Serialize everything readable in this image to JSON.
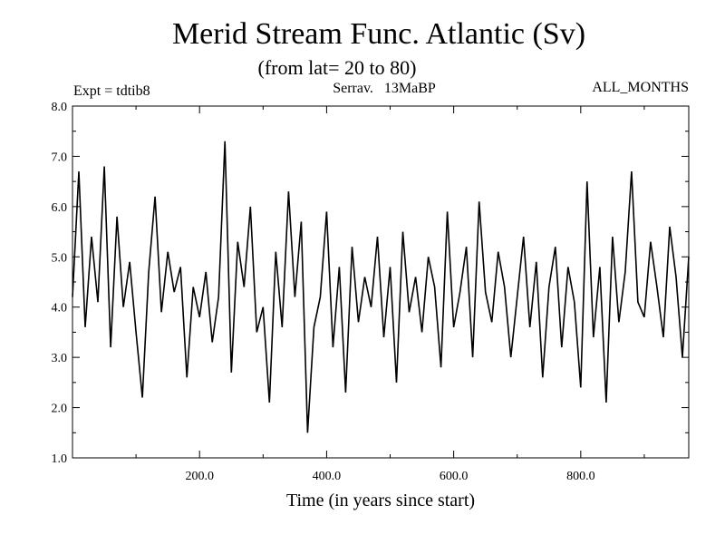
{
  "chart_data": {
    "type": "line",
    "title": "Merid Stream Func. Atlantic (Sv)",
    "subtitle": "(from lat= 20 to 80)",
    "annotations": {
      "left": "Expt = tdtib8",
      "center": "Serrav.   13MaBP",
      "right": "ALL_MONTHS"
    },
    "xlabel": "Time (in years since start)",
    "ylabel": "",
    "xlim": [
      0,
      970
    ],
    "ylim": [
      1.0,
      8.0
    ],
    "xticks": [
      200,
      400,
      600,
      800
    ],
    "xtick_labels": [
      "200.0",
      "400.0",
      "600.0",
      "800.0"
    ],
    "yticks": [
      1.0,
      2.0,
      3.0,
      4.0,
      5.0,
      6.0,
      7.0,
      8.0
    ],
    "ytick_labels": [
      "1.0",
      "2.0",
      "3.0",
      "4.0",
      "5.0",
      "6.0",
      "7.0",
      "8.0"
    ],
    "grid": false,
    "series": [
      {
        "color": "#000000",
        "x": [
          0,
          10,
          20,
          30,
          40,
          50,
          60,
          70,
          80,
          90,
          100,
          110,
          120,
          130,
          140,
          150,
          160,
          170,
          180,
          190,
          200,
          210,
          220,
          230,
          240,
          250,
          260,
          270,
          280,
          290,
          300,
          310,
          320,
          330,
          340,
          350,
          360,
          370,
          380,
          390,
          400,
          410,
          420,
          430,
          440,
          450,
          460,
          470,
          480,
          490,
          500,
          510,
          520,
          530,
          540,
          550,
          560,
          570,
          580,
          590,
          600,
          610,
          620,
          630,
          640,
          650,
          660,
          670,
          680,
          690,
          700,
          710,
          720,
          730,
          740,
          750,
          760,
          770,
          780,
          790,
          800,
          810,
          820,
          830,
          840,
          850,
          860,
          870,
          880,
          890,
          900,
          910,
          920,
          930,
          940,
          950,
          960,
          970
        ],
        "y": [
          4.2,
          6.7,
          3.6,
          5.4,
          4.1,
          6.8,
          3.2,
          5.8,
          4.0,
          4.9,
          3.5,
          2.2,
          4.7,
          6.2,
          3.9,
          5.1,
          4.3,
          4.8,
          2.6,
          4.4,
          3.8,
          4.7,
          3.3,
          4.2,
          7.3,
          2.7,
          5.3,
          4.4,
          6.0,
          3.5,
          4.0,
          2.1,
          5.1,
          3.6,
          6.3,
          4.2,
          5.7,
          1.5,
          3.6,
          4.2,
          5.9,
          3.2,
          4.8,
          2.3,
          5.2,
          3.7,
          4.6,
          4.0,
          5.4,
          3.4,
          4.8,
          2.5,
          5.5,
          3.9,
          4.6,
          3.5,
          5.0,
          4.4,
          2.8,
          5.9,
          3.6,
          4.3,
          5.2,
          3.0,
          6.1,
          4.3,
          3.7,
          5.1,
          4.4,
          3.0,
          4.2,
          5.4,
          3.6,
          4.9,
          2.6,
          4.4,
          5.2,
          3.2,
          4.8,
          4.1,
          2.4,
          6.5,
          3.4,
          4.8,
          2.1,
          5.4,
          3.7,
          4.7,
          6.7,
          4.1,
          3.8,
          5.3,
          4.4,
          3.4,
          5.6,
          4.6,
          3.0,
          5.0
        ]
      }
    ]
  }
}
